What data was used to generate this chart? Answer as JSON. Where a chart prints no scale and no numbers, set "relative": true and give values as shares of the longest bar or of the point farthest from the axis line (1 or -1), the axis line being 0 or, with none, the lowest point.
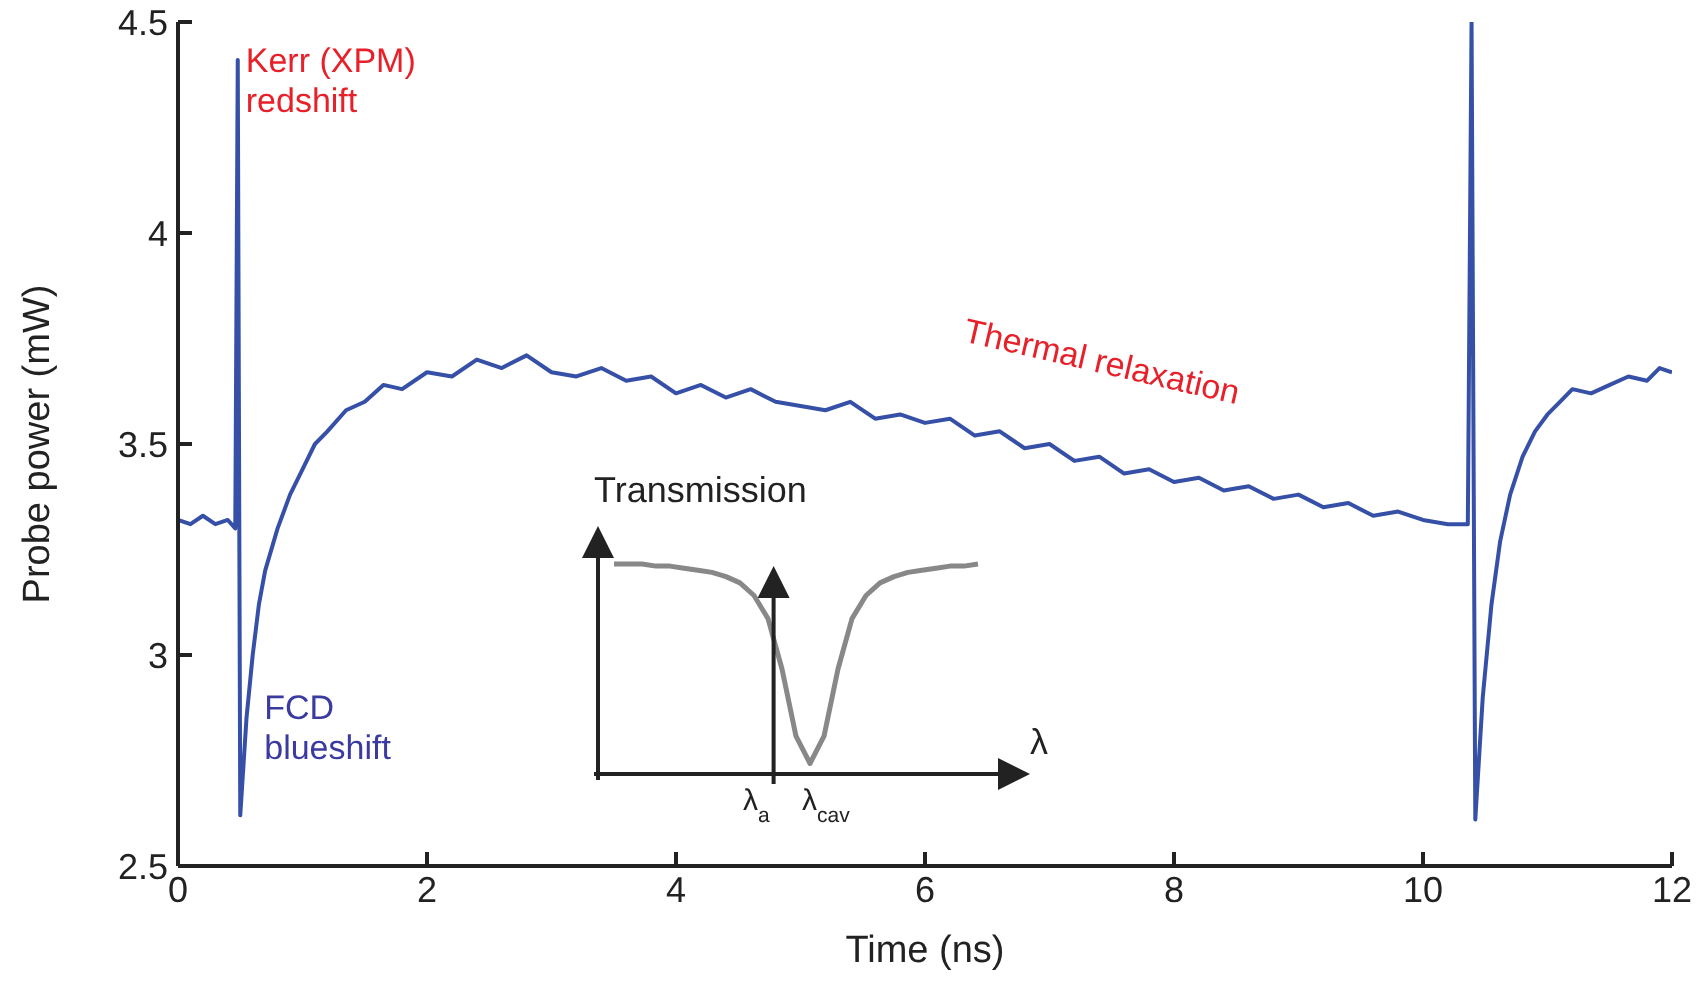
{
  "chart_data": [
    {
      "type": "line",
      "xlabel": "Time (ns)",
      "ylabel": "Probe power (mW)",
      "xlim": [
        0,
        12
      ],
      "xticks": [
        0,
        2,
        4,
        6,
        8,
        10,
        12
      ],
      "ylim": [
        2.5,
        4.5
      ],
      "yticks": [
        2.5,
        3,
        3.5,
        4,
        4.5
      ],
      "marker": "none",
      "line_style": "solid",
      "legend": false,
      "series": [
        {
          "color": "#3650a8",
          "x": [
            0,
            0.1,
            0.2,
            0.3,
            0.4,
            0.46,
            0.48,
            0.5,
            0.55,
            0.6,
            0.65,
            0.7,
            0.8,
            0.9,
            1.0,
            1.1,
            1.2,
            1.35,
            1.5,
            1.65,
            1.8,
            2.0,
            2.2,
            2.4,
            2.6,
            2.8,
            3.0,
            3.2,
            3.4,
            3.6,
            3.8,
            4.0,
            4.2,
            4.4,
            4.6,
            4.8,
            5.0,
            5.2,
            5.4,
            5.6,
            5.8,
            6.0,
            6.2,
            6.4,
            6.6,
            6.8,
            7.0,
            7.2,
            7.4,
            7.6,
            7.8,
            8.0,
            8.2,
            8.4,
            8.6,
            8.8,
            9.0,
            9.2,
            9.4,
            9.6,
            9.8,
            10.0,
            10.2,
            10.36,
            10.39,
            10.42,
            10.48,
            10.55,
            10.62,
            10.7,
            10.8,
            10.9,
            11.0,
            11.1,
            11.2,
            11.35,
            11.5,
            11.65,
            11.8,
            11.9,
            12.0
          ],
          "values": [
            3.32,
            3.31,
            3.33,
            3.31,
            3.32,
            3.3,
            4.41,
            2.62,
            2.85,
            3.0,
            3.12,
            3.2,
            3.3,
            3.38,
            3.44,
            3.5,
            3.53,
            3.58,
            3.6,
            3.64,
            3.63,
            3.67,
            3.66,
            3.7,
            3.68,
            3.71,
            3.67,
            3.66,
            3.68,
            3.65,
            3.66,
            3.62,
            3.64,
            3.61,
            3.63,
            3.6,
            3.59,
            3.58,
            3.6,
            3.56,
            3.57,
            3.55,
            3.56,
            3.52,
            3.53,
            3.49,
            3.5,
            3.46,
            3.47,
            3.43,
            3.44,
            3.41,
            3.42,
            3.39,
            3.4,
            3.37,
            3.38,
            3.35,
            3.36,
            3.33,
            3.34,
            3.32,
            3.31,
            3.31,
            4.5,
            2.61,
            2.9,
            3.12,
            3.27,
            3.38,
            3.47,
            3.53,
            3.57,
            3.6,
            3.63,
            3.62,
            3.64,
            3.66,
            3.65,
            3.68,
            3.67
          ]
        }
      ],
      "annotations": [
        {
          "text": "Kerr (XPM)\nredshift",
          "x": 0.48,
          "y": 4.41
        },
        {
          "text": "FCD\nblueshift",
          "x": 0.5,
          "y": 2.62
        },
        {
          "text": "Thermal relaxation",
          "x": 7.4,
          "y": 3.47
        }
      ]
    },
    {
      "type": "line",
      "relative": true,
      "xlabel": "λ",
      "ylabel": "Transmission",
      "tick_labels": false,
      "marker": "none",
      "categories": [
        null,
        null,
        null,
        null,
        null,
        null,
        null,
        null,
        null,
        null,
        null,
        null,
        null,
        null,
        null,
        null,
        null,
        null,
        null,
        null,
        null,
        null,
        null,
        null,
        null,
        null,
        null
      ],
      "series": [
        {
          "color": "#888888",
          "values": [
            1,
            1,
            1,
            0.99,
            0.99,
            0.98,
            0.97,
            0.96,
            0.94,
            0.91,
            0.85,
            0.74,
            0.5,
            0.18,
            0.05,
            0.18,
            0.5,
            0.74,
            0.85,
            0.91,
            0.94,
            0.96,
            0.97,
            0.98,
            0.99,
            0.99,
            1
          ]
        }
      ],
      "annotations": [
        "λ$_{a}$",
        "λ$_{cav}$"
      ]
    }
  ]
}
